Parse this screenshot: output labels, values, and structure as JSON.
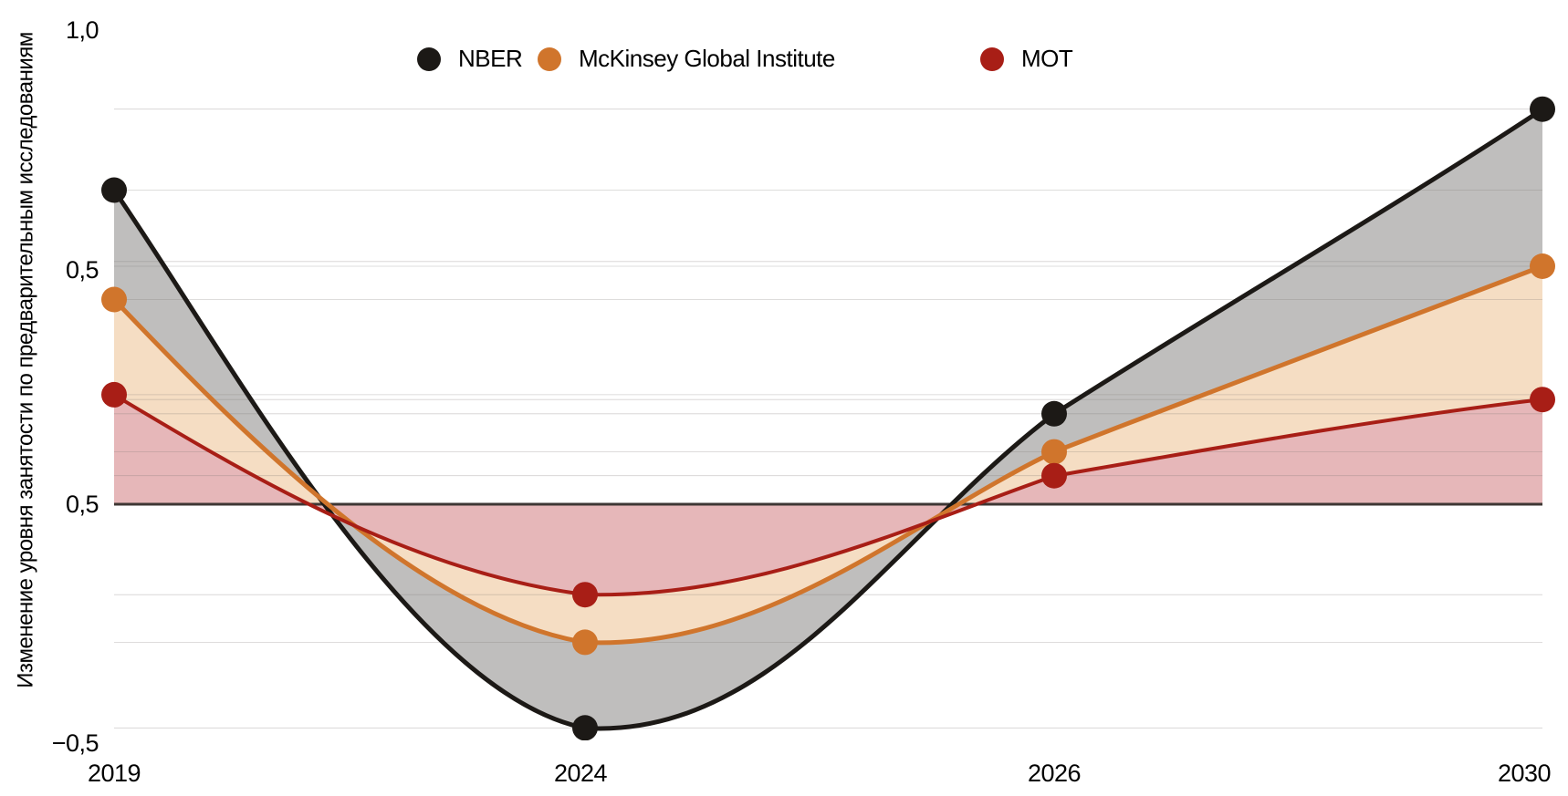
{
  "y_axis": {
    "title": "Изменение уровня занятости по предварительным исследованиям",
    "ticks": [
      "1,0",
      "0,5",
      "0,5",
      "−0,5"
    ]
  },
  "x_axis": {
    "ticks": [
      "2019",
      "2024",
      "2026",
      "2030"
    ]
  },
  "legend": [
    {
      "label": "NBER",
      "color": "#1c1916"
    },
    {
      "label": "McKinsey Global Institute",
      "color": "#d0752c"
    },
    {
      "label": "МОТ",
      "color": "#a81e16"
    }
  ],
  "chart_data": {
    "type": "area",
    "categories": [
      2019,
      2024,
      2026,
      2030
    ],
    "series": [
      {
        "name": "NBER",
        "color": "#1c1916",
        "fill": "#bfbebd",
        "values": [
          0.66,
          -0.47,
          0.19,
          0.83
        ]
      },
      {
        "name": "McKinsey Global Institute",
        "color": "#d0752c",
        "fill": "#f5ddc3",
        "values": [
          0.43,
          -0.29,
          0.11,
          0.5
        ]
      },
      {
        "name": "МОТ",
        "color": "#a81e16",
        "fill": "#e6b7b9",
        "values": [
          0.23,
          -0.19,
          0.06,
          0.22
        ]
      }
    ],
    "title": "",
    "xlabel": "",
    "ylabel": "Изменение уровня занятости по предварительным исследованиям",
    "ylim": [
      -0.5,
      1.0
    ],
    "y_tick_labels_shown": [
      "1,0",
      "0,5",
      "0,5",
      "−0,5"
    ],
    "baseline_value": 0,
    "baseline_color": "#3e3734",
    "extra_faint_gridline_values": [
      0.51
    ],
    "legend_position": "top",
    "grid": "faint horizontal hairlines at each data-point level",
    "note": "smooth curves through 4 points; area between each curve and the zero baseline is shaded (gray, light orange, pink); all curves cross zero near x≈2021.2 and x≈2025.5 equivalents"
  }
}
